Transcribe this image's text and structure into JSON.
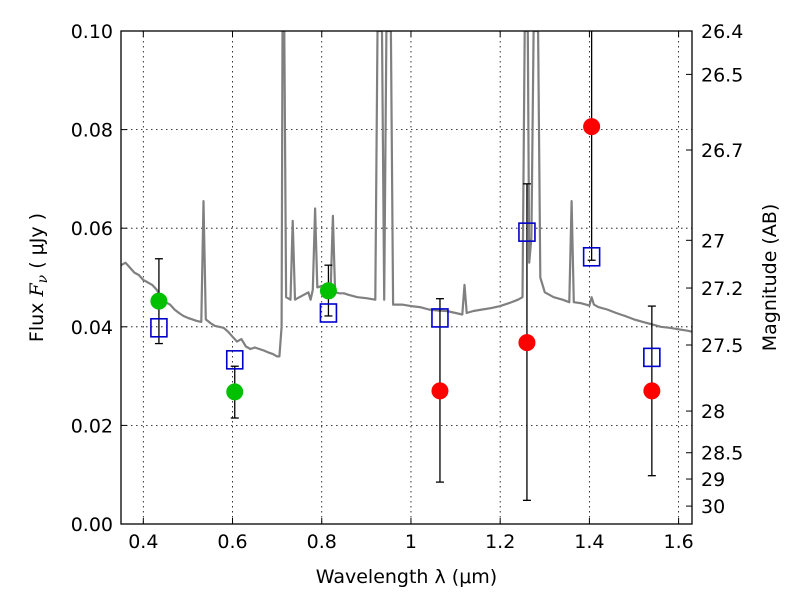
{
  "chart_data": {
    "type": "scatter",
    "xlabel": "Wavelength  λ (μm)",
    "ylabel": "Flux  F_ν  ( μJy )",
    "ylabel_parts": {
      "prefix": "Flux  ",
      "symbol": "F",
      "subscript": "ν",
      "suffix": "  ( μJy )"
    },
    "y2label": "Magnitude (AB)",
    "xlim": [
      0.35,
      1.63
    ],
    "ylim": [
      0.0,
      0.1
    ],
    "xticks": [
      0.4,
      0.6,
      0.8,
      1.0,
      1.2,
      1.4,
      1.6
    ],
    "xtick_labels": [
      "0.4",
      "0.6",
      "0.8",
      "1",
      "1.2",
      "1.4",
      "1.6"
    ],
    "yticks": [
      0.0,
      0.02,
      0.04,
      0.06,
      0.08,
      0.1
    ],
    "ytick_labels": [
      "0.00",
      "0.02",
      "0.04",
      "0.06",
      "0.08",
      "0.10"
    ],
    "y2ticks": [
      26.4,
      26.5,
      26.7,
      27,
      27.2,
      27.5,
      28,
      28.5,
      29,
      30
    ],
    "y2tick_labels": [
      "26.4",
      "26.5",
      "26.7",
      "27",
      "27.2",
      "27.5",
      "28",
      "28.5",
      "29",
      "30"
    ],
    "grid": true,
    "colors": {
      "model_spectrum": "#808080",
      "green_points": "#00c000",
      "red_points": "#ff0000",
      "model_photometry": "#0000cc",
      "error_bars": "#000000"
    },
    "series": [
      {
        "kind": "line",
        "points": [
          [
            0.35,
            0.0525
          ],
          [
            0.36,
            0.053
          ],
          [
            0.37,
            0.052
          ],
          [
            0.38,
            0.051
          ],
          [
            0.39,
            0.0505
          ],
          [
            0.4,
            0.0495
          ],
          [
            0.41,
            0.049
          ],
          [
            0.42,
            0.0485
          ],
          [
            0.43,
            0.0475
          ],
          [
            0.44,
            0.046
          ],
          [
            0.45,
            0.045
          ],
          [
            0.46,
            0.0445
          ],
          [
            0.47,
            0.0435
          ],
          [
            0.48,
            0.0428
          ],
          [
            0.49,
            0.0422
          ],
          [
            0.5,
            0.0418
          ],
          [
            0.51,
            0.0415
          ],
          [
            0.52,
            0.0412
          ],
          [
            0.53,
            0.041
          ],
          [
            0.535,
            0.0655
          ],
          [
            0.54,
            0.0415
          ],
          [
            0.55,
            0.0408
          ],
          [
            0.56,
            0.0402
          ],
          [
            0.57,
            0.04
          ],
          [
            0.58,
            0.0398
          ],
          [
            0.59,
            0.039
          ],
          [
            0.6,
            0.038
          ],
          [
            0.61,
            0.037
          ],
          [
            0.62,
            0.0375
          ],
          [
            0.63,
            0.036
          ],
          [
            0.64,
            0.0355
          ],
          [
            0.65,
            0.0358
          ],
          [
            0.66,
            0.0355
          ],
          [
            0.67,
            0.0352
          ],
          [
            0.68,
            0.0348
          ],
          [
            0.69,
            0.0345
          ],
          [
            0.7,
            0.034
          ],
          [
            0.705,
            0.034
          ],
          [
            0.71,
            0.04
          ],
          [
            0.712,
            0.1
          ],
          [
            0.716,
            0.1
          ],
          [
            0.72,
            0.046
          ],
          [
            0.73,
            0.0455
          ],
          [
            0.735,
            0.0615
          ],
          [
            0.74,
            0.0455
          ],
          [
            0.75,
            0.046
          ],
          [
            0.76,
            0.0465
          ],
          [
            0.77,
            0.047
          ],
          [
            0.775,
            0.0455
          ],
          [
            0.78,
            0.0475
          ],
          [
            0.785,
            0.064
          ],
          [
            0.79,
            0.048
          ],
          [
            0.8,
            0.0483
          ],
          [
            0.81,
            0.048
          ],
          [
            0.82,
            0.0478
          ],
          [
            0.825,
            0.0625
          ],
          [
            0.83,
            0.047
          ],
          [
            0.84,
            0.0468
          ],
          [
            0.85,
            0.0468
          ],
          [
            0.86,
            0.0465
          ],
          [
            0.88,
            0.046
          ],
          [
            0.9,
            0.0458
          ],
          [
            0.92,
            0.0455
          ],
          [
            0.925,
            0.1
          ],
          [
            0.935,
            0.1
          ],
          [
            0.94,
            0.0455
          ],
          [
            0.945,
            0.1
          ],
          [
            0.955,
            0.1
          ],
          [
            0.96,
            0.0445
          ],
          [
            0.98,
            0.0445
          ],
          [
            1.0,
            0.0442
          ],
          [
            1.02,
            0.044
          ],
          [
            1.04,
            0.0435
          ],
          [
            1.06,
            0.0433
          ],
          [
            1.08,
            0.0432
          ],
          [
            1.1,
            0.0428
          ],
          [
            1.115,
            0.0425
          ],
          [
            1.12,
            0.0485
          ],
          [
            1.125,
            0.0428
          ],
          [
            1.14,
            0.0432
          ],
          [
            1.16,
            0.0435
          ],
          [
            1.18,
            0.0438
          ],
          [
            1.2,
            0.0442
          ],
          [
            1.22,
            0.0448
          ],
          [
            1.24,
            0.0455
          ],
          [
            1.25,
            0.046
          ],
          [
            1.255,
            0.1
          ],
          [
            1.262,
            0.1
          ],
          [
            1.265,
            0.053
          ],
          [
            1.27,
            0.058
          ],
          [
            1.275,
            0.1
          ],
          [
            1.285,
            0.1
          ],
          [
            1.29,
            0.05
          ],
          [
            1.3,
            0.047
          ],
          [
            1.32,
            0.046
          ],
          [
            1.34,
            0.0455
          ],
          [
            1.355,
            0.045
          ],
          [
            1.36,
            0.0655
          ],
          [
            1.365,
            0.045
          ],
          [
            1.38,
            0.0448
          ],
          [
            1.4,
            0.0443
          ],
          [
            1.405,
            0.046
          ],
          [
            1.41,
            0.0445
          ],
          [
            1.42,
            0.044
          ],
          [
            1.44,
            0.0435
          ],
          [
            1.46,
            0.0428
          ],
          [
            1.48,
            0.0422
          ],
          [
            1.5,
            0.0415
          ],
          [
            1.52,
            0.041
          ],
          [
            1.54,
            0.0405
          ],
          [
            1.56,
            0.04
          ],
          [
            1.58,
            0.0398
          ],
          [
            1.6,
            0.0395
          ],
          [
            1.62,
            0.0392
          ],
          [
            1.63,
            0.039
          ]
        ]
      },
      {
        "kind": "points",
        "marker": "circle",
        "points": [
          {
            "x": 0.435,
            "y": 0.0452,
            "err_low": 0.0366,
            "err_high": 0.0538
          },
          {
            "x": 0.605,
            "y": 0.0268,
            "err_low": 0.0215,
            "err_high": 0.032
          },
          {
            "x": 0.815,
            "y": 0.0473,
            "err_low": 0.0422,
            "err_high": 0.0525
          }
        ]
      },
      {
        "kind": "points",
        "marker": "circle",
        "points": [
          {
            "x": 1.065,
            "y": 0.027,
            "err_low": 0.0085,
            "err_high": 0.0457
          },
          {
            "x": 1.26,
            "y": 0.0368,
            "err_low": 0.0048,
            "err_high": 0.069
          },
          {
            "x": 1.405,
            "y": 0.0806,
            "err_low": 0.0535,
            "err_high": 0.1
          },
          {
            "x": 1.54,
            "y": 0.027,
            "err_low": 0.0098,
            "err_high": 0.0442
          }
        ]
      },
      {
        "kind": "points",
        "marker": "open-square",
        "points": [
          {
            "x": 0.435,
            "y": 0.0398
          },
          {
            "x": 0.605,
            "y": 0.0333
          },
          {
            "x": 0.815,
            "y": 0.0428
          },
          {
            "x": 1.065,
            "y": 0.0418
          },
          {
            "x": 1.26,
            "y": 0.0592
          },
          {
            "x": 1.405,
            "y": 0.0542
          },
          {
            "x": 1.54,
            "y": 0.0338
          }
        ]
      }
    ]
  }
}
